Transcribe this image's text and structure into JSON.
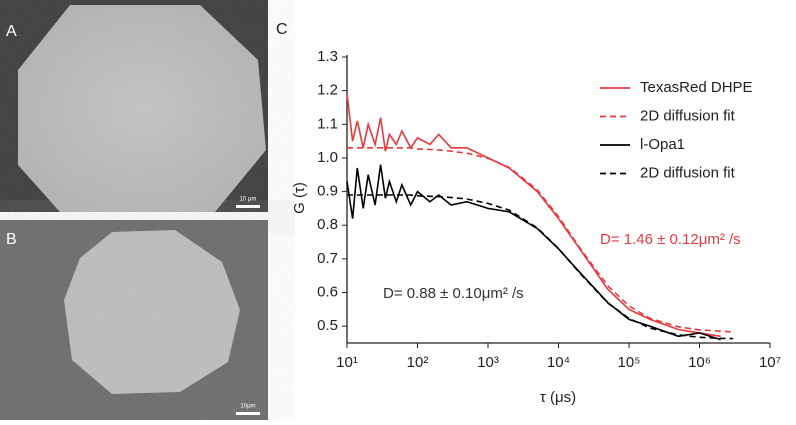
{
  "panels": [
    {
      "label": "A",
      "scale_bar": "10 μm"
    },
    {
      "label": "B",
      "scale_bar": "10μm"
    }
  ],
  "chart_data": {
    "type": "line",
    "panel_label": "C",
    "x_label": "τ (μs)",
    "y_label": "G (τ)",
    "xscale": "log",
    "xlim": [
      10,
      10000000
    ],
    "ylim": [
      0.45,
      1.3
    ],
    "xticks": [
      {
        "value": 10,
        "label": "10¹"
      },
      {
        "value": 100,
        "label": "10²"
      },
      {
        "value": 1000,
        "label": "10³"
      },
      {
        "value": 10000,
        "label": "10⁴"
      },
      {
        "value": 100000,
        "label": "10⁵"
      },
      {
        "value": 1000000,
        "label": "10⁶"
      },
      {
        "value": 10000000,
        "label": "10⁷"
      }
    ],
    "yticks": [
      0.5,
      0.6,
      0.7,
      0.8,
      0.9,
      {
        "value": 1,
        "label": "1.0"
      },
      1.1,
      1.2,
      1.3
    ],
    "legend": "upper right",
    "x": [
      10,
      12,
      14,
      17,
      20,
      25,
      30,
      35,
      40,
      50,
      60,
      80,
      100,
      150,
      200,
      300,
      500,
      1000,
      2000,
      5000,
      10000,
      20000,
      50000,
      100000,
      200000,
      500000,
      1000000,
      2000000,
      3000000
    ],
    "series": [
      {
        "name": "TexasRed DHPE",
        "color": "#e8393f",
        "linestyle": "solid",
        "values": [
          1.19,
          1.05,
          1.11,
          1.03,
          1.1,
          1.04,
          1.12,
          1.02,
          1.07,
          1.04,
          1.08,
          1.03,
          1.06,
          1.04,
          1.07,
          1.03,
          1.03,
          1.0,
          0.97,
          0.9,
          0.82,
          0.73,
          0.61,
          0.55,
          0.52,
          0.49,
          0.48,
          0.47,
          null
        ]
      },
      {
        "name": "2D diffusion fit",
        "color": "#e8393f",
        "linestyle": "dashed",
        "values": [
          1.03,
          1.03,
          1.03,
          1.03,
          1.03,
          1.03,
          1.03,
          1.03,
          1.03,
          1.03,
          1.03,
          1.03,
          1.027,
          1.025,
          1.024,
          1.02,
          1.014,
          0.999,
          0.972,
          0.905,
          0.826,
          0.733,
          0.62,
          0.56,
          0.523,
          0.498,
          0.489,
          0.485,
          0.483
        ]
      },
      {
        "name": "l-Opa1",
        "color": "#000000",
        "linestyle": "solid",
        "values": [
          0.93,
          0.82,
          0.97,
          0.85,
          0.95,
          0.86,
          0.98,
          0.88,
          0.93,
          0.87,
          0.92,
          0.86,
          0.9,
          0.87,
          0.89,
          0.86,
          0.87,
          0.85,
          0.84,
          0.79,
          0.73,
          0.66,
          0.57,
          0.52,
          0.5,
          0.47,
          0.48,
          0.46,
          null
        ]
      },
      {
        "name": "2D diffusion fit",
        "color": "#000000",
        "linestyle": "dashed",
        "values": [
          0.89,
          0.89,
          0.89,
          0.89,
          0.89,
          0.89,
          0.89,
          0.89,
          0.89,
          0.89,
          0.89,
          0.89,
          0.8875,
          0.886,
          0.885,
          0.8825,
          0.878,
          0.865,
          0.845,
          0.792,
          0.731,
          0.658,
          0.569,
          0.523,
          0.494,
          0.474,
          0.467,
          0.464,
          0.463
        ]
      }
    ],
    "annotations": [
      {
        "text": "D= 1.46 ± 0.12μm² /s",
        "color": "#e8393f"
      },
      {
        "text": "D= 0.88 ± 0.10μm² /s",
        "color": "#333333"
      }
    ]
  }
}
